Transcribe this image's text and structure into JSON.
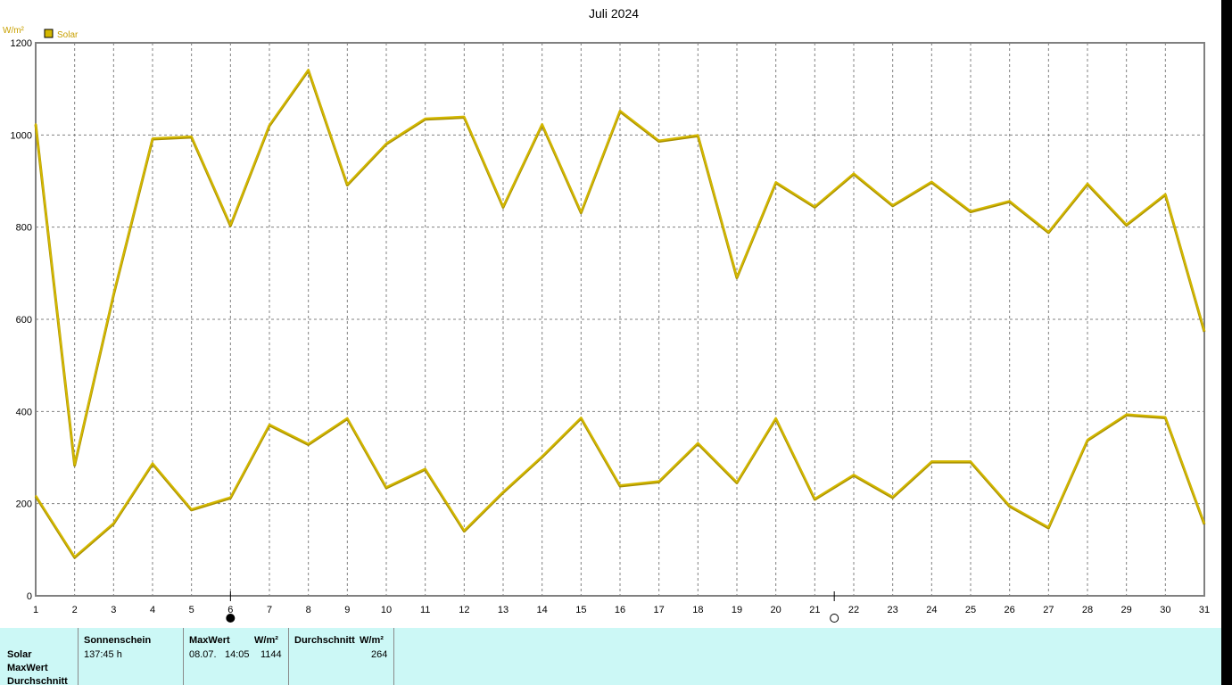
{
  "chart_data": {
    "type": "line",
    "title": "Juli 2024",
    "ylabel": "W/m²",
    "ylim": [
      0,
      1200
    ],
    "yticks": [
      0,
      200,
      400,
      600,
      800,
      1000,
      1200
    ],
    "x": [
      1,
      2,
      3,
      4,
      5,
      6,
      7,
      8,
      9,
      10,
      11,
      12,
      13,
      14,
      15,
      16,
      17,
      18,
      19,
      20,
      21,
      22,
      23,
      24,
      25,
      26,
      27,
      28,
      29,
      30,
      31
    ],
    "grid": true,
    "legend_position": "top-left",
    "color": "#d4b800",
    "series": [
      {
        "name": "Solar",
        "role": "max",
        "values": [
          1025,
          285,
          655,
          993,
          997,
          805,
          1022,
          1142,
          893,
          982,
          1036,
          1040,
          845,
          1024,
          833,
          1053,
          988,
          1000,
          692,
          898,
          845,
          917,
          848,
          899,
          835,
          857,
          790,
          895,
          806,
          872,
          575
        ]
      },
      {
        "name": "",
        "role": "average",
        "values": [
          218,
          85,
          158,
          288,
          188,
          214,
          372,
          330,
          386,
          236,
          276,
          142,
          226,
          303,
          387,
          240,
          249,
          332,
          247,
          386,
          211,
          263,
          215,
          292,
          292,
          196,
          149,
          339,
          394,
          388,
          157
        ]
      }
    ],
    "moon_markers": [
      {
        "day": 6,
        "phase": "new"
      },
      {
        "day": 21.5,
        "phase": "full"
      }
    ]
  },
  "stats": {
    "row_labels": [
      "Solar",
      "MaxWert",
      "Durchschnitt"
    ],
    "sunshine": {
      "header": "Sonnenschein",
      "value": "137:45 h"
    },
    "max": {
      "header": "MaxWert",
      "unit": "W/m²",
      "date": "08.07.",
      "time": "14:05",
      "value": "1144"
    },
    "average": {
      "header": "Durchschnitt",
      "unit": "W/m²",
      "value": "264"
    }
  }
}
